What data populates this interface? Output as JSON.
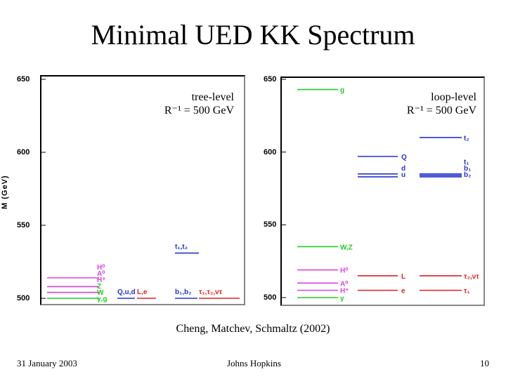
{
  "slide": {
    "title": "Minimal UED KK Spectrum",
    "citation": "Cheng, Matchev, Schmaltz (2002)",
    "footer": {
      "date": "31 January 2003",
      "venue": "Johns Hopkins",
      "page": "10"
    }
  },
  "colors": {
    "green": "#22cc22",
    "magenta": "#dd44dd",
    "blue": "#2233cc",
    "red": "#dd2222"
  },
  "chart_data": [
    {
      "type": "level-diagram",
      "title": "tree-level",
      "subtitle": "R⁻¹ = 500 GeV",
      "ylabel": "M (GeV)",
      "ylim": [
        500,
        650
      ],
      "yticks": [
        500,
        550,
        600,
        650
      ],
      "levels": [
        {
          "column": 0,
          "mass": 500,
          "color": "green",
          "label": "γ,g"
        },
        {
          "column": 0,
          "mass": 504,
          "color": "green",
          "label": "W"
        },
        {
          "column": 0,
          "mass": 508,
          "color": "green",
          "label": "Z"
        },
        {
          "column": 0,
          "mass": 504,
          "color": "magenta",
          "label": "H⁺"
        },
        {
          "column": 0,
          "mass": 508,
          "color": "magenta",
          "label": "A⁰"
        },
        {
          "column": 0,
          "mass": 514,
          "color": "magenta",
          "label": "H⁰"
        },
        {
          "column": 1,
          "mass": 500,
          "color": "blue",
          "label": "Q,u,d"
        },
        {
          "column": 1,
          "mass": 500,
          "color": "red",
          "label": "L,e"
        },
        {
          "column": 2,
          "mass": 500,
          "color": "blue",
          "label": "b₁,b₂"
        },
        {
          "column": 2,
          "mass": 500,
          "color": "red",
          "label": "τ₁,τ₂,ντ"
        },
        {
          "column": 2,
          "mass": 531,
          "color": "blue",
          "label": "t₁,t₂"
        }
      ]
    },
    {
      "type": "level-diagram",
      "title": "loop-level",
      "subtitle": "R⁻¹ = 500 GeV",
      "ylim": [
        500,
        650
      ],
      "yticks": [
        500,
        550,
        600,
        650
      ],
      "levels": [
        {
          "column": 0,
          "mass": 500,
          "color": "green",
          "label": "γ"
        },
        {
          "column": 0,
          "mass": 535,
          "color": "green",
          "label": "W,Z"
        },
        {
          "column": 0,
          "mass": 643,
          "color": "green",
          "label": "g"
        },
        {
          "column": 0,
          "mass": 505,
          "color": "magenta",
          "label": "H⁺"
        },
        {
          "column": 0,
          "mass": 510,
          "color": "magenta",
          "label": "A⁰"
        },
        {
          "column": 0,
          "mass": 519,
          "color": "magenta",
          "label": "H⁰"
        },
        {
          "column": 1,
          "mass": 597,
          "color": "blue",
          "label": "Q"
        },
        {
          "column": 1,
          "mass": 585,
          "color": "blue",
          "label": "u"
        },
        {
          "column": 1,
          "mass": 583,
          "color": "blue",
          "label": "d"
        },
        {
          "column": 1,
          "mass": 515,
          "color": "red",
          "label": "L"
        },
        {
          "column": 1,
          "mass": 505,
          "color": "red",
          "label": "e"
        },
        {
          "column": 2,
          "mass": 610,
          "color": "blue",
          "label": "t₂"
        },
        {
          "column": 2,
          "mass": 585,
          "color": "blue",
          "label": "b₂"
        },
        {
          "column": 2,
          "mass": 583,
          "color": "blue",
          "label": "b₁"
        },
        {
          "column": 2,
          "mass": 584,
          "color": "blue",
          "label": "t₁"
        },
        {
          "column": 2,
          "mass": 515,
          "color": "red",
          "label": "τ₂,ντ"
        },
        {
          "column": 2,
          "mass": 505,
          "color": "red",
          "label": "τ₁"
        }
      ]
    }
  ]
}
